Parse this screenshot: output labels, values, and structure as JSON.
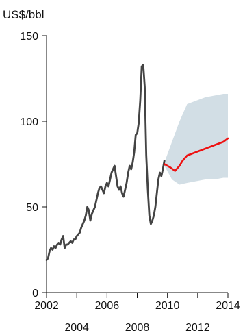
{
  "chart_data": {
    "type": "line",
    "title": "",
    "ylabel": "US$/bbl",
    "xlabel": "",
    "xlim": [
      2002,
      2014
    ],
    "ylim": [
      0,
      150
    ],
    "grid": false,
    "legend": "none",
    "y_ticks": [
      0,
      50,
      100,
      150
    ],
    "y_tick_labels": [
      "0",
      "50",
      "100",
      "150"
    ],
    "x_ticks": [
      2002,
      2004,
      2006,
      2008,
      2010,
      2012,
      2014
    ],
    "x_tick_labels_upper": [
      "2002",
      "2006",
      "2010",
      "2014"
    ],
    "x_tick_labels_lower": [
      "2004",
      "2008",
      "2012"
    ],
    "colors": {
      "historical": "#444444",
      "forecast": "#ee1111",
      "band": "#d2dee5",
      "axis": "#111111"
    },
    "series": [
      {
        "role": "historical",
        "x": [
          2002.0,
          2002.1,
          2002.2,
          2002.3,
          2002.4,
          2002.5,
          2002.6,
          2002.7,
          2002.8,
          2002.9,
          2003.0,
          2003.1,
          2003.2,
          2003.3,
          2003.4,
          2003.5,
          2003.6,
          2003.7,
          2003.8,
          2003.9,
          2004.0,
          2004.1,
          2004.2,
          2004.3,
          2004.4,
          2004.5,
          2004.6,
          2004.7,
          2004.8,
          2004.9,
          2005.0,
          2005.1,
          2005.2,
          2005.3,
          2005.4,
          2005.5,
          2005.6,
          2005.7,
          2005.8,
          2005.9,
          2006.0,
          2006.1,
          2006.2,
          2006.3,
          2006.4,
          2006.5,
          2006.6,
          2006.7,
          2006.8,
          2006.9,
          2007.0,
          2007.1,
          2007.2,
          2007.3,
          2007.4,
          2007.5,
          2007.6,
          2007.7,
          2007.8,
          2007.9,
          2008.0,
          2008.1,
          2008.2,
          2008.3,
          2008.4,
          2008.5,
          2008.6,
          2008.7,
          2008.8,
          2008.9,
          2009.0,
          2009.1,
          2009.2,
          2009.3,
          2009.4,
          2009.5,
          2009.6,
          2009.7,
          2009.8
        ],
        "values": [
          19,
          20,
          24,
          26,
          25,
          27,
          26,
          28,
          29,
          28,
          31,
          33,
          26,
          28,
          28,
          29,
          30,
          29,
          31,
          31,
          33,
          34,
          35,
          38,
          40,
          42,
          45,
          50,
          48,
          42,
          46,
          48,
          50,
          54,
          58,
          61,
          62,
          60,
          58,
          62,
          64,
          62,
          66,
          70,
          72,
          74,
          68,
          62,
          60,
          62,
          58,
          56,
          60,
          64,
          70,
          74,
          72,
          76,
          82,
          92,
          93,
          99,
          112,
          132,
          133,
          120,
          80,
          60,
          45,
          40,
          42,
          45,
          50,
          58,
          66,
          70,
          68,
          72,
          77
        ]
      },
      {
        "role": "forecast",
        "x": [
          2009.8,
          2010.2,
          2010.5,
          2010.8,
          2011.0,
          2011.3,
          2011.6,
          2011.9,
          2012.2,
          2012.5,
          2012.8,
          2013.1,
          2013.4,
          2013.7,
          2014.0
        ],
        "values": [
          75,
          73,
          71,
          74,
          77,
          80,
          81,
          82,
          83,
          84,
          85,
          86,
          87,
          88,
          90
        ]
      }
    ],
    "forecast_band": {
      "x": [
        2009.8,
        2010.3,
        2010.8,
        2011.3,
        2011.9,
        2012.5,
        2013.1,
        2013.7,
        2014.0
      ],
      "upper": [
        76,
        88,
        100,
        110,
        112,
        114,
        115,
        116,
        116
      ],
      "lower": [
        74,
        66,
        63,
        64,
        65,
        66,
        66,
        67,
        67
      ]
    }
  }
}
